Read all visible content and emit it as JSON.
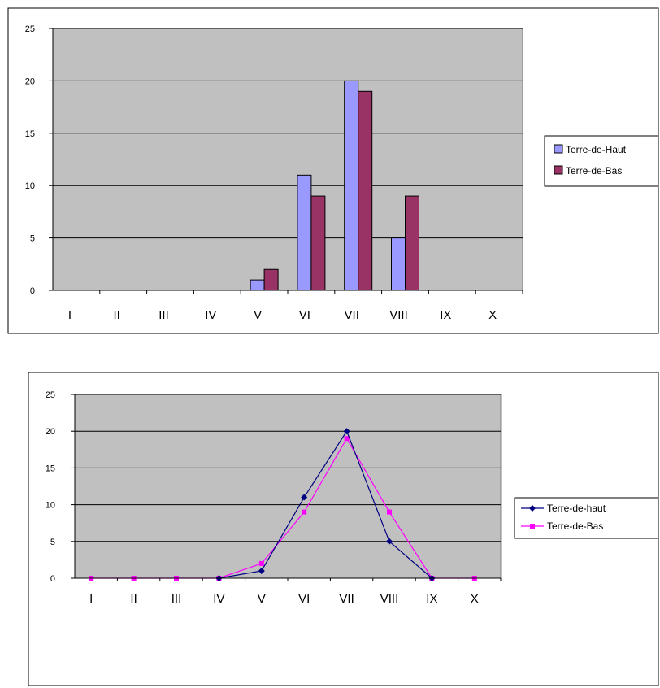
{
  "chart_data": [
    {
      "type": "bar",
      "categories": [
        "I",
        "II",
        "III",
        "IV",
        "V",
        "VI",
        "VII",
        "VIII",
        "IX",
        "X"
      ],
      "series": [
        {
          "name": "Terre-de-Haut",
          "values": [
            0,
            0,
            0,
            0,
            1,
            11,
            20,
            5,
            0,
            0
          ]
        },
        {
          "name": "Terre-de-Bas",
          "values": [
            0,
            0,
            0,
            0,
            2,
            9,
            19,
            9,
            0,
            0
          ]
        }
      ],
      "ylim": [
        0,
        25
      ],
      "yticks": [
        0,
        5,
        10,
        15,
        20,
        25
      ],
      "grid": true,
      "legend": "right",
      "colors": {
        "plot_bg": "#c0c0c0",
        "series": [
          "#9999ff",
          "#993366"
        ]
      }
    },
    {
      "type": "line",
      "categories": [
        "I",
        "II",
        "III",
        "IV",
        "V",
        "VI",
        "VII",
        "VIII",
        "IX",
        "X"
      ],
      "series": [
        {
          "name": "Terre-de-haut",
          "values": [
            null,
            null,
            null,
            0,
            1,
            11,
            20,
            5,
            0,
            null
          ],
          "marker": "diamond"
        },
        {
          "name": "Terre-de-Bas",
          "values": [
            0,
            0,
            0,
            0,
            2,
            9,
            19,
            9,
            0,
            0
          ],
          "marker": "square"
        }
      ],
      "ylim": [
        0,
        25
      ],
      "yticks": [
        0,
        5,
        10,
        15,
        20,
        25
      ],
      "grid": true,
      "legend": "right",
      "colors": {
        "plot_bg": "#c0c0c0",
        "series": [
          "#000080",
          "#ff00ff"
        ]
      }
    }
  ]
}
